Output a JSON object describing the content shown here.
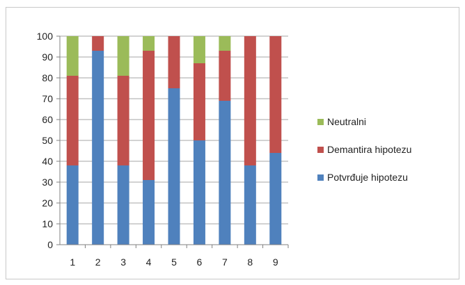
{
  "chart_data": {
    "type": "bar",
    "stacked": true,
    "categories": [
      "1",
      "2",
      "3",
      "4",
      "5",
      "6",
      "7",
      "8",
      "9"
    ],
    "series": [
      {
        "name": "Potvrđuje hipotezu",
        "color": "#4f81bd",
        "values": [
          38,
          93,
          38,
          31,
          75,
          50,
          69,
          38,
          44
        ]
      },
      {
        "name": "Demantira hipotezu",
        "color": "#c0504d",
        "values": [
          43,
          7,
          43,
          62,
          25,
          37,
          24,
          62,
          56
        ]
      },
      {
        "name": "Neutralni",
        "color": "#9bbb59",
        "values": [
          19,
          0,
          19,
          7,
          0,
          13,
          7,
          0,
          0
        ]
      }
    ],
    "legend_order": [
      "Neutralni",
      "Demantira hipotezu",
      "Potvrđuje hipotezu"
    ],
    "ylim": [
      0,
      100
    ],
    "yticks": [
      0,
      10,
      20,
      30,
      40,
      50,
      60,
      70,
      80,
      90,
      100
    ],
    "grid": true,
    "legend": "right",
    "title": "",
    "xlabel": "",
    "ylabel": ""
  }
}
